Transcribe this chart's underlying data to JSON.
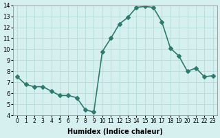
{
  "x": [
    0,
    1,
    2,
    3,
    4,
    5,
    6,
    7,
    8,
    9,
    10,
    11,
    12,
    13,
    14,
    15,
    16,
    17,
    18,
    19,
    20,
    21,
    22,
    23
  ],
  "y": [
    7.5,
    6.8,
    6.6,
    6.6,
    6.2,
    5.8,
    5.8,
    5.6,
    4.5,
    4.3,
    9.8,
    11.0,
    12.3,
    12.9,
    13.8,
    13.9,
    13.8,
    12.5,
    10.1,
    9.4,
    8.0,
    8.3,
    7.5,
    7.6
  ],
  "line_color": "#2d7a6e",
  "marker": "D",
  "marker_size": 3,
  "bg_color": "#d6f0f0",
  "grid_color": "#b0d8d8",
  "xlabel": "Humidex (Indice chaleur)",
  "ylim": [
    4,
    14
  ],
  "xlim": [
    -0.5,
    23.5
  ],
  "yticks": [
    4,
    5,
    6,
    7,
    8,
    9,
    10,
    11,
    12,
    13,
    14
  ],
  "xticks": [
    0,
    1,
    2,
    3,
    4,
    5,
    6,
    7,
    8,
    9,
    10,
    11,
    12,
    13,
    14,
    15,
    16,
    17,
    18,
    19,
    20,
    21,
    22,
    23
  ],
  "xtick_labels": [
    "0",
    "1",
    "2",
    "3",
    "4",
    "5",
    "6",
    "7",
    "8",
    "9",
    "10",
    "11",
    "12",
    "13",
    "14",
    "15",
    "16",
    "17",
    "18",
    "19",
    "20",
    "21",
    "22",
    "23"
  ],
  "line_width": 1.2
}
